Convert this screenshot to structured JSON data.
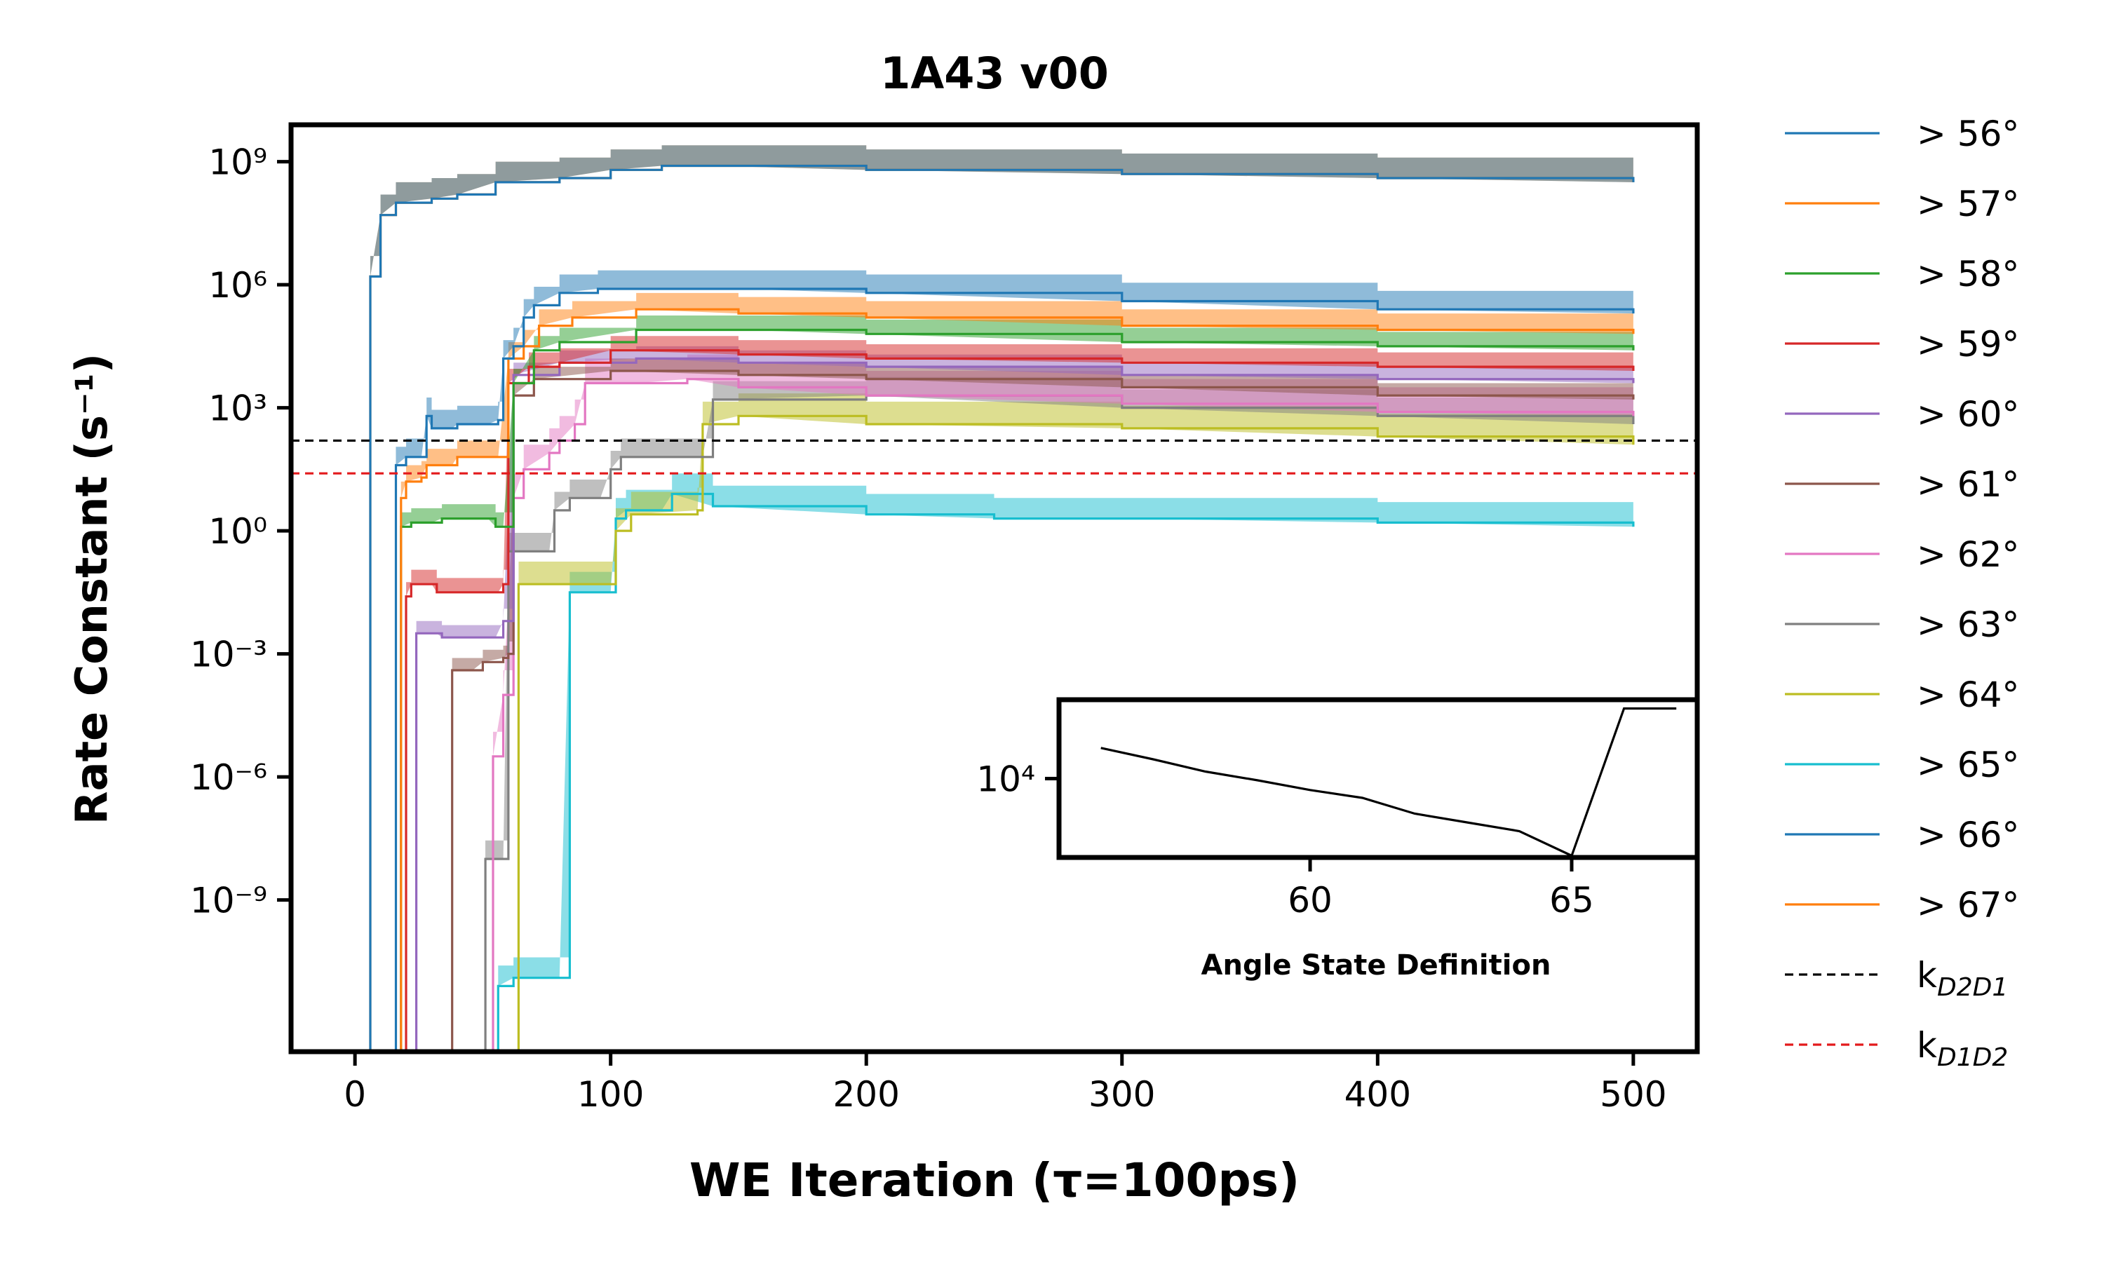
{
  "chart_data": {
    "type": "line",
    "title": "1A43 v00",
    "xlabel": "WE Iteration (τ=100ps)",
    "ylabel": "Rate Constant (s⁻¹)",
    "xlim": [
      -25,
      525
    ],
    "ylim_log10": [
      -12.7,
      9.9
    ],
    "y_scale": "log",
    "x_ticks": [
      0,
      100,
      200,
      300,
      400,
      500
    ],
    "x_tick_labels": [
      "0",
      "100",
      "200",
      "300",
      "400",
      "500"
    ],
    "y_ticks_log10": [
      9,
      6,
      3,
      0,
      -3,
      -6,
      -9
    ],
    "y_tick_labels": [
      "10⁹",
      "10⁶",
      "10³",
      "10⁰",
      "10⁻³",
      "10⁻⁶",
      "10⁻⁹"
    ],
    "grid": false,
    "legend_position": "outside-right",
    "legend": [
      {
        "label": "> 56°",
        "color": "#1f77b4",
        "style": "solid"
      },
      {
        "label": "> 57°",
        "color": "#ff7f0e",
        "style": "solid"
      },
      {
        "label": "> 58°",
        "color": "#2ca02c",
        "style": "solid"
      },
      {
        "label": "> 59°",
        "color": "#d62728",
        "style": "solid"
      },
      {
        "label": "> 60°",
        "color": "#9467bd",
        "style": "solid"
      },
      {
        "label": "> 61°",
        "color": "#8c564b",
        "style": "solid"
      },
      {
        "label": "> 62°",
        "color": "#e377c2",
        "style": "solid"
      },
      {
        "label": "> 63°",
        "color": "#7f7f7f",
        "style": "solid"
      },
      {
        "label": "> 64°",
        "color": "#bcbd22",
        "style": "solid"
      },
      {
        "label": "> 65°",
        "color": "#17becf",
        "style": "solid"
      },
      {
        "label": "> 66°",
        "color": "#1f77b4",
        "style": "solid"
      },
      {
        "label": "> 67°",
        "color": "#ff7f0e",
        "style": "solid"
      },
      {
        "label": "k",
        "sub": "D2D1",
        "color": "#000000",
        "style": "dashed"
      },
      {
        "label": "k",
        "sub": "D1D2",
        "color": "#e31a1c",
        "style": "dashed"
      }
    ],
    "reference_lines_log10": [
      {
        "sub": "D2D1",
        "value": 2.2,
        "color": "#000000"
      },
      {
        "sub": "D1D2",
        "value": 1.4,
        "color": "#e31a1c"
      }
    ],
    "series": [
      {
        "name": "> 56°",
        "color": "#1f77b4",
        "band_log10": 0.45,
        "points": [
          [
            16,
            -20
          ],
          [
            16,
            1.6
          ],
          [
            20,
            1.8
          ],
          [
            26,
            1.8
          ],
          [
            28,
            2.8
          ],
          [
            30,
            2.5
          ],
          [
            38,
            2.5
          ],
          [
            40,
            2.6
          ],
          [
            52,
            2.6
          ],
          [
            56,
            2.7
          ],
          [
            58,
            4.2
          ],
          [
            62,
            4.5
          ],
          [
            66,
            5.2
          ],
          [
            70,
            5.5
          ],
          [
            80,
            5.8
          ],
          [
            95,
            5.9
          ],
          [
            115,
            5.9
          ],
          [
            150,
            5.9
          ],
          [
            200,
            5.8
          ],
          [
            300,
            5.6
          ],
          [
            400,
            5.4
          ],
          [
            500,
            5.3
          ]
        ]
      },
      {
        "name": "> 57°",
        "color": "#ff7f0e",
        "band_log10": 0.4,
        "points": [
          [
            18,
            -20
          ],
          [
            18,
            0.8
          ],
          [
            20,
            1.2
          ],
          [
            26,
            1.3
          ],
          [
            28,
            1.6
          ],
          [
            38,
            1.6
          ],
          [
            40,
            1.8
          ],
          [
            56,
            1.8
          ],
          [
            60,
            4.2
          ],
          [
            66,
            4.5
          ],
          [
            72,
            5.0
          ],
          [
            85,
            5.2
          ],
          [
            110,
            5.4
          ],
          [
            150,
            5.3
          ],
          [
            200,
            5.2
          ],
          [
            300,
            5.0
          ],
          [
            400,
            4.9
          ],
          [
            500,
            4.8
          ]
        ]
      },
      {
        "name": "> 58°",
        "color": "#2ca02c",
        "band_log10": 0.35,
        "points": [
          [
            18,
            -20
          ],
          [
            18,
            0.1
          ],
          [
            22,
            0.2
          ],
          [
            30,
            0.2
          ],
          [
            34,
            0.3
          ],
          [
            52,
            0.3
          ],
          [
            55,
            0.1
          ],
          [
            58,
            0.1
          ],
          [
            62,
            3.6
          ],
          [
            70,
            4.4
          ],
          [
            80,
            4.6
          ],
          [
            110,
            4.9
          ],
          [
            150,
            4.9
          ],
          [
            200,
            4.8
          ],
          [
            300,
            4.6
          ],
          [
            400,
            4.5
          ],
          [
            500,
            4.4
          ]
        ]
      },
      {
        "name": "> 59°",
        "color": "#d62728",
        "band_log10": 0.35,
        "points": [
          [
            20,
            -20
          ],
          [
            20,
            -1.6
          ],
          [
            22,
            -1.3
          ],
          [
            30,
            -1.3
          ],
          [
            32,
            -1.5
          ],
          [
            56,
            -1.5
          ],
          [
            58,
            -1.3
          ],
          [
            60,
            3.6
          ],
          [
            68,
            4.0
          ],
          [
            80,
            4.1
          ],
          [
            100,
            4.4
          ],
          [
            150,
            4.3
          ],
          [
            200,
            4.2
          ],
          [
            300,
            4.1
          ],
          [
            400,
            4.0
          ],
          [
            500,
            3.9
          ]
        ]
      },
      {
        "name": "> 60°",
        "color": "#9467bd",
        "band_log10": 0.3,
        "points": [
          [
            24,
            -20
          ],
          [
            24,
            -2.5
          ],
          [
            32,
            -2.5
          ],
          [
            34,
            -2.6
          ],
          [
            55,
            -2.6
          ],
          [
            58,
            -2.2
          ],
          [
            62,
            3.8
          ],
          [
            80,
            4.1
          ],
          [
            110,
            4.2
          ],
          [
            150,
            4.1
          ],
          [
            200,
            4.0
          ],
          [
            300,
            3.8
          ],
          [
            400,
            3.7
          ],
          [
            500,
            3.6
          ]
        ]
      },
      {
        "name": "> 61°",
        "color": "#8c564b",
        "band_log10": 0.3,
        "points": [
          [
            38,
            -20
          ],
          [
            38,
            -3.4
          ],
          [
            46,
            -3.4
          ],
          [
            50,
            -3.2
          ],
          [
            58,
            -3.1
          ],
          [
            60,
            -3.0
          ],
          [
            62,
            3.3
          ],
          [
            70,
            3.7
          ],
          [
            100,
            3.9
          ],
          [
            150,
            3.8
          ],
          [
            200,
            3.7
          ],
          [
            300,
            3.5
          ],
          [
            400,
            3.3
          ],
          [
            500,
            3.2
          ]
        ]
      },
      {
        "name": "> 62°",
        "color": "#e377c2",
        "band_log10": 0.6,
        "points": [
          [
            54,
            -20
          ],
          [
            54,
            -5.5
          ],
          [
            58,
            -4.0
          ],
          [
            62,
            0.8
          ],
          [
            66,
            1.5
          ],
          [
            76,
            1.9
          ],
          [
            80,
            2.2
          ],
          [
            86,
            2.6
          ],
          [
            90,
            3.6
          ],
          [
            110,
            3.6
          ],
          [
            130,
            3.7
          ],
          [
            150,
            3.5
          ],
          [
            200,
            3.3
          ],
          [
            300,
            3.1
          ],
          [
            400,
            2.9
          ],
          [
            500,
            2.8
          ]
        ]
      },
      {
        "name": "> 63°",
        "color": "#7f7f7f",
        "band_log10": 0.45,
        "points": [
          [
            51,
            -20
          ],
          [
            51,
            -8.0
          ],
          [
            58,
            -8.0
          ],
          [
            60,
            -0.5
          ],
          [
            76,
            -0.5
          ],
          [
            78,
            0.5
          ],
          [
            84,
            0.8
          ],
          [
            96,
            0.8
          ],
          [
            100,
            1.5
          ],
          [
            104,
            1.8
          ],
          [
            136,
            1.8
          ],
          [
            140,
            3.2
          ],
          [
            200,
            3.3
          ],
          [
            300,
            3.0
          ],
          [
            400,
            2.8
          ],
          [
            500,
            2.6
          ]
        ]
      },
      {
        "name": "> 64°",
        "color": "#bcbd22",
        "band_log10": 0.55,
        "points": [
          [
            64,
            -20
          ],
          [
            64,
            -1.3
          ],
          [
            82,
            -1.3
          ],
          [
            84,
            -1.3
          ],
          [
            100,
            -1.3
          ],
          [
            102,
            0.0
          ],
          [
            108,
            0.4
          ],
          [
            134,
            0.5
          ],
          [
            136,
            2.6
          ],
          [
            150,
            2.8
          ],
          [
            200,
            2.6
          ],
          [
            300,
            2.5
          ],
          [
            400,
            2.3
          ],
          [
            500,
            2.1
          ]
        ]
      },
      {
        "name": "> 65°",
        "color": "#17becf",
        "band_log10": 0.5,
        "points": [
          [
            56,
            -20
          ],
          [
            56,
            -11.1
          ],
          [
            62,
            -10.9
          ],
          [
            80,
            -10.9
          ],
          [
            84,
            -1.5
          ],
          [
            100,
            -1.5
          ],
          [
            102,
            0.3
          ],
          [
            106,
            0.5
          ],
          [
            120,
            0.5
          ],
          [
            124,
            0.9
          ],
          [
            140,
            0.6
          ],
          [
            200,
            0.4
          ],
          [
            250,
            0.3
          ],
          [
            300,
            0.3
          ],
          [
            400,
            0.2
          ],
          [
            500,
            0.1
          ]
        ]
      },
      {
        "name": "> 66°",
        "color": "#1f77b4",
        "band_log10": 0.5,
        "points": [
          [
            6,
            -20
          ],
          [
            6,
            6.2
          ],
          [
            10,
            7.7
          ],
          [
            16,
            8.0
          ],
          [
            30,
            8.1
          ],
          [
            40,
            8.2
          ],
          [
            55,
            8.5
          ],
          [
            80,
            8.6
          ],
          [
            100,
            8.8
          ],
          [
            120,
            8.9
          ],
          [
            140,
            8.9
          ],
          [
            200,
            8.8
          ],
          [
            300,
            8.7
          ],
          [
            400,
            8.6
          ],
          [
            500,
            8.5
          ]
        ]
      },
      {
        "name": "> 67°",
        "color": "#ff7f0e",
        "band_log10": 0.5,
        "points": [
          [
            6,
            -20
          ],
          [
            6,
            6.2
          ],
          [
            10,
            7.7
          ],
          [
            16,
            8.0
          ],
          [
            30,
            8.1
          ],
          [
            40,
            8.2
          ],
          [
            55,
            8.5
          ],
          [
            80,
            8.6
          ],
          [
            100,
            8.8
          ],
          [
            120,
            8.9
          ],
          [
            140,
            8.9
          ],
          [
            200,
            8.8
          ],
          [
            300,
            8.7
          ],
          [
            400,
            8.6
          ],
          [
            500,
            8.5
          ]
        ]
      }
    ],
    "inset": {
      "type": "line",
      "xlabel": "Angle State Definition",
      "xlim": [
        55.2,
        67.4
      ],
      "ylim_log10": [
        3.1,
        4.9
      ],
      "x_ticks": [
        60,
        65
      ],
      "x_tick_labels": [
        "60",
        "65"
      ],
      "y_ticks_log10": [
        4
      ],
      "y_tick_labels": [
        "10⁴"
      ],
      "x": [
        56,
        57,
        58,
        59,
        60,
        61,
        62,
        63,
        64,
        65,
        66,
        67
      ],
      "y_log10": [
        4.35,
        4.22,
        4.08,
        3.98,
        3.87,
        3.78,
        3.6,
        3.5,
        3.4,
        3.12,
        4.8,
        4.8
      ],
      "color": "#000000"
    }
  }
}
